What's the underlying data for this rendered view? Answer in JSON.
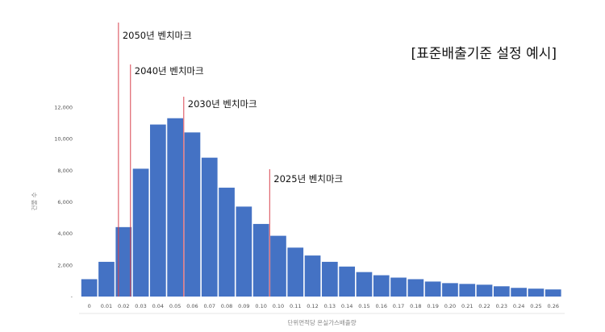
{
  "chart_data": {
    "type": "bar",
    "title": "[표준배출기준 설정 예시]",
    "xlabel": "단위면적당 온실가스배출량",
    "ylabel": "건물 수",
    "categories": [
      "0",
      "0.01",
      "0.02",
      "0.03",
      "0.04",
      "0.05",
      "0.06",
      "0.07",
      "0.08",
      "0.09",
      "0.10",
      "0.10",
      "0.11",
      "0.12",
      "0.13",
      "0.14",
      "0.15",
      "0.16",
      "0.17",
      "0.18",
      "0.19",
      "0.20",
      "0.21",
      "0.22",
      "0.23",
      "0.24",
      "0.25",
      "0.26"
    ],
    "values": [
      1100,
      2200,
      4400,
      8100,
      10900,
      11300,
      10400,
      8800,
      6900,
      5700,
      4600,
      3850,
      3100,
      2600,
      2200,
      1900,
      1550,
      1350,
      1200,
      1100,
      950,
      850,
      800,
      750,
      650,
      550,
      500,
      450
    ],
    "ylim": [
      0,
      12000
    ],
    "yticks": [
      "-",
      "2,000",
      "4,000",
      "6,000",
      "8,000",
      "10,000",
      "12,000"
    ],
    "grid": false,
    "color": "#4472c4",
    "annotations": [
      {
        "label": "2050년 벤치마크",
        "x_index": 2.2
      },
      {
        "label": "2040년 벤치마크",
        "x_index": 2.9
      },
      {
        "label": "2030년 벤치마크",
        "x_index": 6.0
      },
      {
        "label": "2025년 벤치마크",
        "x_index": 11.0
      }
    ],
    "annotation_color": "#d9434f"
  }
}
